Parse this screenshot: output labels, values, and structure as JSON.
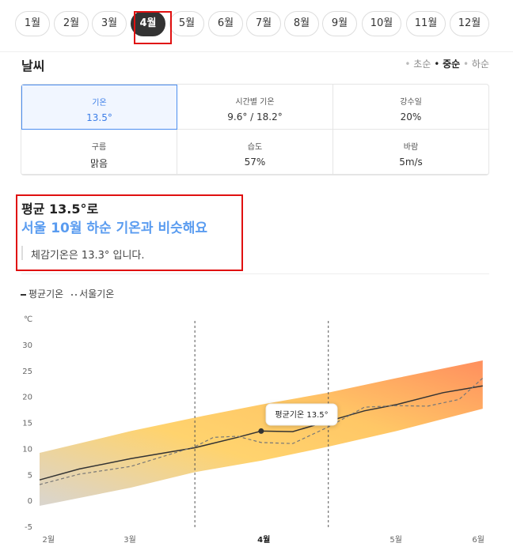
{
  "tabs": [
    "1월",
    "2월",
    "3월",
    "4월",
    "5월",
    "6월",
    "7월",
    "8월",
    "9월",
    "10월",
    "11월",
    "12월"
  ],
  "active_tab": 3,
  "weather": {
    "title": "날씨",
    "periods": [
      "초순",
      "중순",
      "하순"
    ],
    "active_period": 1,
    "active_cell": 0,
    "cells": [
      {
        "label": "기온",
        "value": "13.5°"
      },
      {
        "label": "시간별 기온",
        "value": "9.6° / 18.2°"
      },
      {
        "label": "강수일",
        "value": "20%"
      },
      {
        "label": "구름",
        "value": "맑음"
      },
      {
        "label": "습도",
        "value": "57%"
      },
      {
        "label": "바람",
        "value": "5m/s"
      }
    ]
  },
  "summary": {
    "headline": "평균 13.5°로",
    "comparison": "서울 10월 하순 기온과 비슷해요",
    "feels_like": "체감기온은 13.3° 입니다."
  },
  "chart_data": {
    "type": "line",
    "y_unit": "℃",
    "xlim": [
      0,
      100
    ],
    "xticks": [
      {
        "value": 2,
        "label": "2월"
      },
      {
        "value": 20.3,
        "label": "3월"
      },
      {
        "value": 50.4,
        "label": "4월"
      },
      {
        "value": 80.1,
        "label": "5월"
      },
      {
        "value": 98.6,
        "label": "6월"
      }
    ],
    "bold_tick": 2,
    "ylim": [
      -5,
      30
    ],
    "yticks": [
      -5,
      0,
      5,
      10,
      15,
      20,
      25,
      30
    ],
    "vlines": [
      34.9,
      64.9
    ],
    "band": {
      "x": [
        0,
        20.5,
        34.9,
        49.8,
        64.9,
        80.2,
        99.6
      ],
      "low": [
        -0.9,
        2.6,
        5.6,
        7.8,
        10.5,
        13.5,
        17.8
      ],
      "high": [
        9.3,
        13.5,
        16.1,
        18.6,
        20.9,
        23.7,
        27.1
      ],
      "colors": [
        "#ff8f5e",
        "#ffc766",
        "#ffd36e",
        "#d9d5cf"
      ]
    },
    "series": [
      {
        "name": "평균기온",
        "color": "#333333",
        "dashed": false,
        "x": [
          0,
          8.9,
          20.5,
          34.9,
          44.5,
          49.8,
          56.9,
          64.9,
          73.0,
          80.2,
          90.7,
          99.6
        ],
        "values": [
          4.1,
          6.2,
          8.2,
          10.3,
          12.3,
          13.5,
          13.4,
          15.4,
          17.4,
          18.6,
          20.9,
          22.2
        ]
      },
      {
        "name": "서울기온",
        "color": "#777777",
        "dashed": true,
        "x": [
          0,
          8.9,
          20.5,
          34.9,
          39.1,
          44.5,
          49.8,
          56.9,
          64.9,
          73.0,
          80.2,
          87.2,
          94.3,
          99.6
        ],
        "values": [
          3.2,
          5.2,
          6.7,
          10.5,
          12.3,
          12.5,
          11.3,
          11.1,
          14.3,
          18.1,
          18.4,
          18.3,
          19.6,
          23.7
        ]
      }
    ],
    "highlight": {
      "x": 49.8,
      "value": 13.5,
      "label": "평균기온 13.5°"
    }
  }
}
